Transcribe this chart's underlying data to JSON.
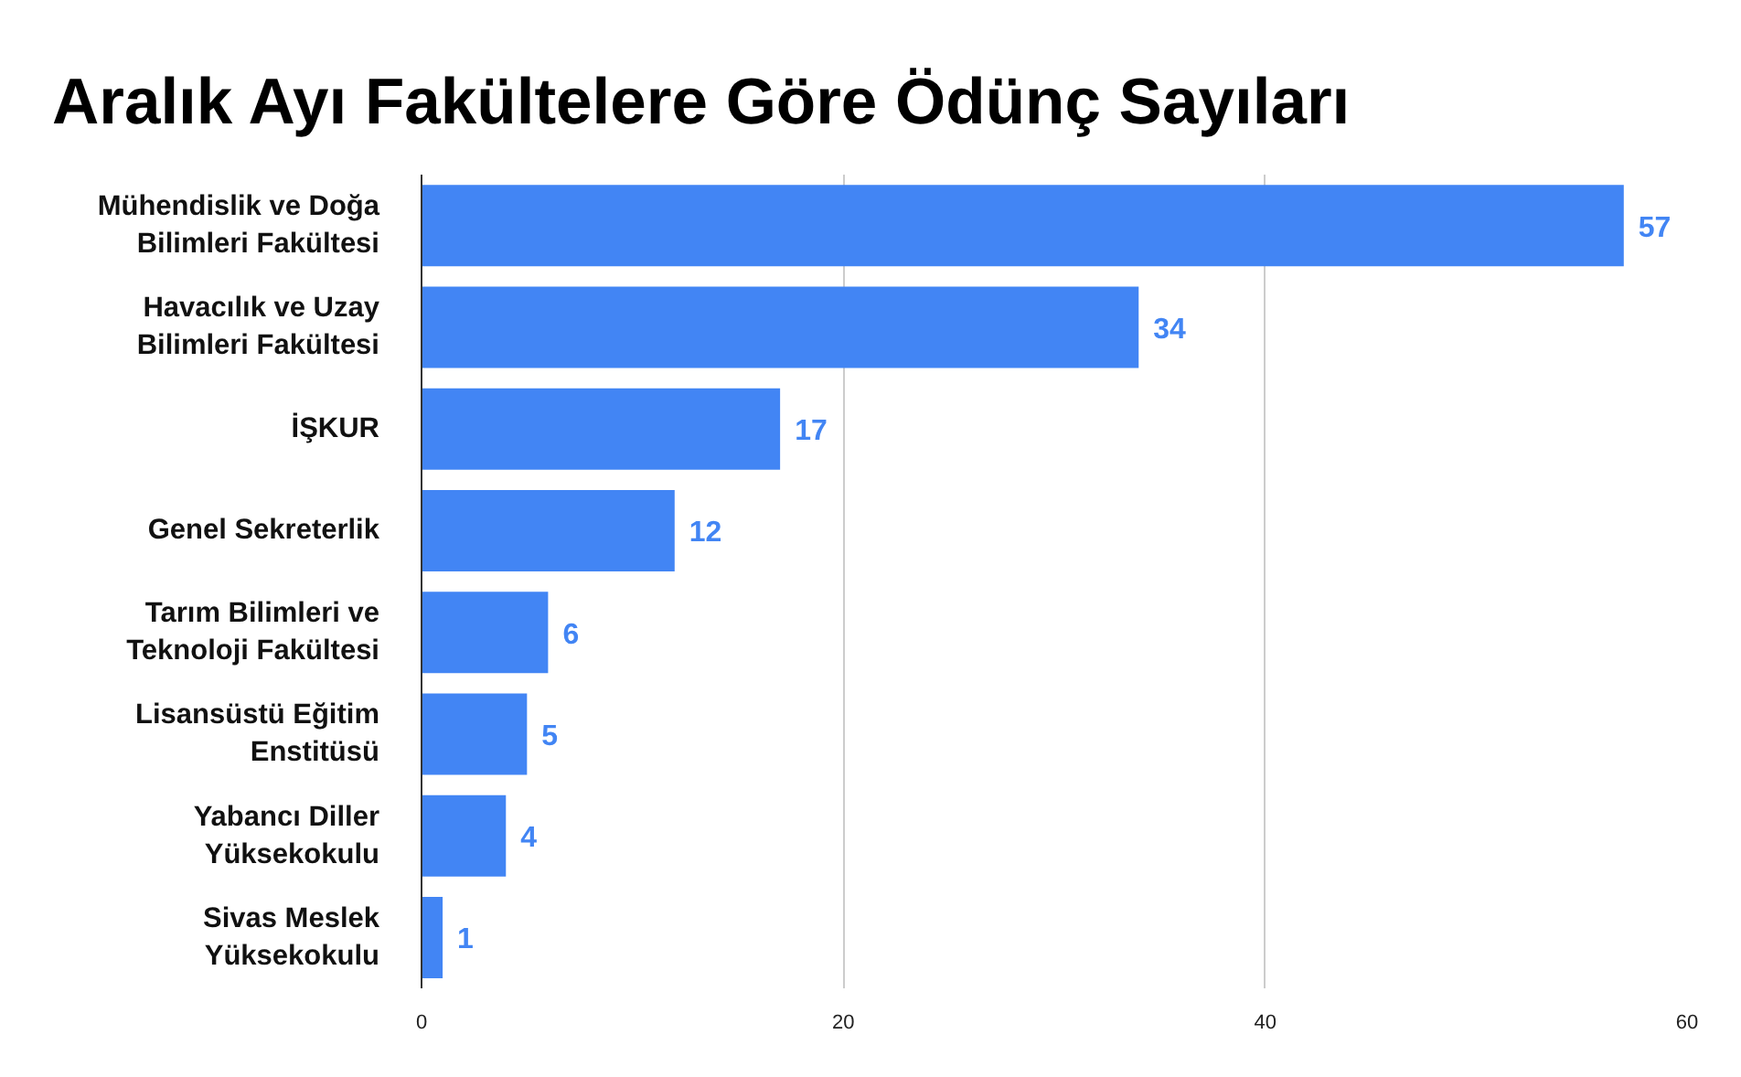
{
  "chart_data": {
    "type": "bar",
    "orientation": "horizontal",
    "title": "Aralık Ayı Fakültelere Göre Ödünç Sayıları",
    "categories": [
      "Mühendislik ve Doğa Bilimleri Fakültesi",
      "Havacılık ve Uzay Bilimleri Fakültesi",
      "İŞKUR",
      "Genel Sekreterlik",
      "Tarım Bilimleri ve Teknoloji Fakültesi",
      "Lisansüstü Eğitim Enstitüsü",
      "Yabancı Diller Yüksekokulu",
      "Sivas Meslek Yüksekokulu"
    ],
    "values": [
      57,
      34,
      17,
      12,
      6,
      5,
      4,
      1
    ],
    "color": "#4285f4",
    "xlim": [
      0,
      60
    ],
    "xticks": [
      0,
      20,
      40,
      60
    ],
    "grid": "x",
    "data_labels": true
  }
}
